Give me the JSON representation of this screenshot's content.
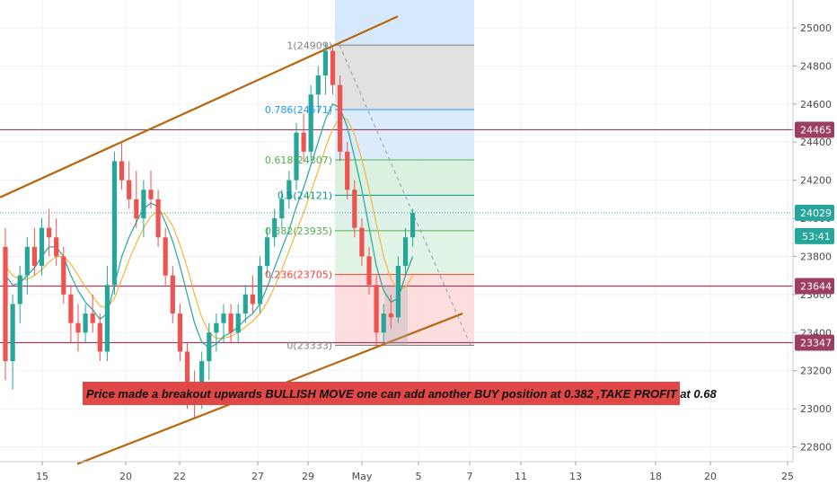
{
  "chart_data": {
    "type": "candlestick",
    "title": "",
    "ylim": [
      22700,
      25150
    ],
    "x_ticks": [
      "15",
      "20",
      "22",
      "27",
      "29",
      "May",
      "5",
      "7",
      "11",
      "13",
      "18",
      "20",
      "25"
    ],
    "y_ticks": [
      22800,
      23000,
      23200,
      23400,
      23600,
      23800,
      24000,
      24200,
      24400,
      24600,
      24800,
      25000
    ],
    "current_price": "24029",
    "countdown": "53:41",
    "horizontal_levels": [
      {
        "value": 24465,
        "label": "24465",
        "color": "#9c3e61"
      },
      {
        "value": 23644,
        "label": "23644",
        "color": "#9c3e61"
      },
      {
        "value": 23347,
        "label": "23347",
        "color": "#9c3e61"
      }
    ],
    "fibonacci": [
      {
        "ratio": "1",
        "price": "24909",
        "label": "1(24909)",
        "value": 24909,
        "color": "#808080"
      },
      {
        "ratio": "0.786",
        "price": "24571",
        "label": "0.786(24571)",
        "value": 24571,
        "color": "#2196f3"
      },
      {
        "ratio": "0.618",
        "price": "24307",
        "label": "0.618(24307)",
        "value": 24307,
        "color": "#4caf50"
      },
      {
        "ratio": "0.5",
        "price": "24121",
        "label": "0.5(24121)",
        "value": 24121,
        "color": "#009688"
      },
      {
        "ratio": "0.382",
        "price": "23935",
        "label": "0.382(23935)",
        "value": 23935,
        "color": "#4caf50"
      },
      {
        "ratio": "0.236",
        "price": "23705",
        "label": "0.236(23705)",
        "value": 23705,
        "color": "#f44336"
      },
      {
        "ratio": "0",
        "price": "23333",
        "label": "0(23333)",
        "value": 23333,
        "color": "#808080"
      }
    ],
    "annotation": "Price made a breakout upwards BULLISH MOVE one can add another BUY position at 0.382 ,TAKE PROFIT at 0.68",
    "colors": {
      "bull": "#26a69a",
      "bear": "#ef5350",
      "channel": "#b8660e",
      "ma_fast": "#26a69a",
      "ma_slow": "#f0b73c",
      "level": "#9c3e61",
      "current": "#26a69a",
      "annotation_bg": "#e04848"
    },
    "candles": [
      {
        "o": 23850,
        "h": 23950,
        "l": 23150,
        "c": 23250
      },
      {
        "o": 23250,
        "h": 23600,
        "l": 23100,
        "c": 23550
      },
      {
        "o": 23550,
        "h": 23750,
        "l": 23450,
        "c": 23700
      },
      {
        "o": 23700,
        "h": 23900,
        "l": 23600,
        "c": 23850
      },
      {
        "o": 23850,
        "h": 23950,
        "l": 23700,
        "c": 23750
      },
      {
        "o": 23750,
        "h": 24000,
        "l": 23700,
        "c": 23950
      },
      {
        "o": 23950,
        "h": 24050,
        "l": 23800,
        "c": 23900
      },
      {
        "o": 23900,
        "h": 24000,
        "l": 23750,
        "c": 23800
      },
      {
        "o": 23800,
        "h": 23850,
        "l": 23550,
        "c": 23600
      },
      {
        "o": 23600,
        "h": 23650,
        "l": 23350,
        "c": 23450
      },
      {
        "o": 23450,
        "h": 23550,
        "l": 23300,
        "c": 23400
      },
      {
        "o": 23400,
        "h": 23550,
        "l": 23350,
        "c": 23500
      },
      {
        "o": 23500,
        "h": 23600,
        "l": 23400,
        "c": 23450
      },
      {
        "o": 23450,
        "h": 23500,
        "l": 23250,
        "c": 23300
      },
      {
        "o": 23300,
        "h": 23750,
        "l": 23250,
        "c": 23650
      },
      {
        "o": 23650,
        "h": 24350,
        "l": 23600,
        "c": 24300
      },
      {
        "o": 24300,
        "h": 24400,
        "l": 24150,
        "c": 24200
      },
      {
        "o": 24200,
        "h": 24300,
        "l": 24050,
        "c": 24100
      },
      {
        "o": 24100,
        "h": 24250,
        "l": 23950,
        "c": 24000
      },
      {
        "o": 24000,
        "h": 24200,
        "l": 23900,
        "c": 24150
      },
      {
        "o": 24150,
        "h": 24250,
        "l": 24050,
        "c": 24100
      },
      {
        "o": 24100,
        "h": 24150,
        "l": 23850,
        "c": 23900
      },
      {
        "o": 23900,
        "h": 23950,
        "l": 23650,
        "c": 23700
      },
      {
        "o": 23700,
        "h": 23750,
        "l": 23450,
        "c": 23500
      },
      {
        "o": 23500,
        "h": 23550,
        "l": 23250,
        "c": 23300
      },
      {
        "o": 23300,
        "h": 23350,
        "l": 23000,
        "c": 23100
      },
      {
        "o": 23100,
        "h": 23200,
        "l": 22950,
        "c": 23050
      },
      {
        "o": 23050,
        "h": 23300,
        "l": 23000,
        "c": 23250
      },
      {
        "o": 23250,
        "h": 23450,
        "l": 23150,
        "c": 23400
      },
      {
        "o": 23400,
        "h": 23500,
        "l": 23300,
        "c": 23450
      },
      {
        "o": 23450,
        "h": 23550,
        "l": 23350,
        "c": 23500
      },
      {
        "o": 23500,
        "h": 23550,
        "l": 23350,
        "c": 23400
      },
      {
        "o": 23400,
        "h": 23550,
        "l": 23350,
        "c": 23500
      },
      {
        "o": 23500,
        "h": 23650,
        "l": 23450,
        "c": 23600
      },
      {
        "o": 23600,
        "h": 23700,
        "l": 23500,
        "c": 23550
      },
      {
        "o": 23550,
        "h": 23800,
        "l": 23500,
        "c": 23750
      },
      {
        "o": 23750,
        "h": 23950,
        "l": 23700,
        "c": 23900
      },
      {
        "o": 23900,
        "h": 24050,
        "l": 23850,
        "c": 24000
      },
      {
        "o": 24000,
        "h": 24150,
        "l": 23950,
        "c": 24100
      },
      {
        "o": 24100,
        "h": 24250,
        "l": 24050,
        "c": 24200
      },
      {
        "o": 24200,
        "h": 24500,
        "l": 24150,
        "c": 24450
      },
      {
        "o": 24450,
        "h": 24550,
        "l": 24300,
        "c": 24350
      },
      {
        "o": 24350,
        "h": 24700,
        "l": 24300,
        "c": 24650
      },
      {
        "o": 24650,
        "h": 24800,
        "l": 24550,
        "c": 24750
      },
      {
        "o": 24750,
        "h": 24920,
        "l": 24650,
        "c": 24880
      },
      {
        "o": 24880,
        "h": 24900,
        "l": 24650,
        "c": 24700
      },
      {
        "o": 24700,
        "h": 24750,
        "l": 24300,
        "c": 24350
      },
      {
        "o": 24350,
        "h": 24400,
        "l": 24100,
        "c": 24150
      },
      {
        "o": 24150,
        "h": 24200,
        "l": 23900,
        "c": 23950
      },
      {
        "o": 23950,
        "h": 24000,
        "l": 23750,
        "c": 23800
      },
      {
        "o": 23800,
        "h": 23850,
        "l": 23600,
        "c": 23650
      },
      {
        "o": 23650,
        "h": 23700,
        "l": 23330,
        "c": 23400
      },
      {
        "o": 23400,
        "h": 23550,
        "l": 23350,
        "c": 23500
      },
      {
        "o": 23500,
        "h": 23600,
        "l": 23420,
        "c": 23480
      },
      {
        "o": 23480,
        "h": 23800,
        "l": 23450,
        "c": 23750
      },
      {
        "o": 23750,
        "h": 23950,
        "l": 23700,
        "c": 23900
      },
      {
        "o": 23900,
        "h": 24050,
        "l": 23850,
        "c": 24029
      }
    ],
    "ma_fast": [
      23700,
      23650,
      23660,
      23700,
      23740,
      23800,
      23850,
      23850,
      23800,
      23700,
      23620,
      23560,
      23520,
      23470,
      23500,
      23650,
      23800,
      23900,
      23980,
      24050,
      24080,
      24060,
      23980,
      23880,
      23750,
      23600,
      23450,
      23350,
      23320,
      23340,
      23380,
      23400,
      23430,
      23470,
      23500,
      23550,
      23640,
      23740,
      23840,
      23940,
      24060,
      24160,
      24280,
      24400,
      24520,
      24600,
      24580,
      24480,
      24320,
      24150,
      23950,
      23750,
      23620,
      23560,
      23580,
      23700,
      23800
    ],
    "ma_slow": [
      23750,
      23700,
      23680,
      23680,
      23700,
      23730,
      23770,
      23800,
      23800,
      23760,
      23700,
      23640,
      23590,
      23540,
      23530,
      23580,
      23680,
      23780,
      23870,
      23950,
      24010,
      24040,
      24020,
      23960,
      23860,
      23740,
      23600,
      23480,
      23400,
      23370,
      23370,
      23380,
      23400,
      23430,
      23460,
      23500,
      23560,
      23640,
      23730,
      23830,
      23930,
      24030,
      24140,
      24250,
      24370,
      24470,
      24530,
      24520,
      24440,
      24310,
      24150,
      23970,
      23800,
      23680,
      23620,
      23640,
      23700
    ]
  }
}
